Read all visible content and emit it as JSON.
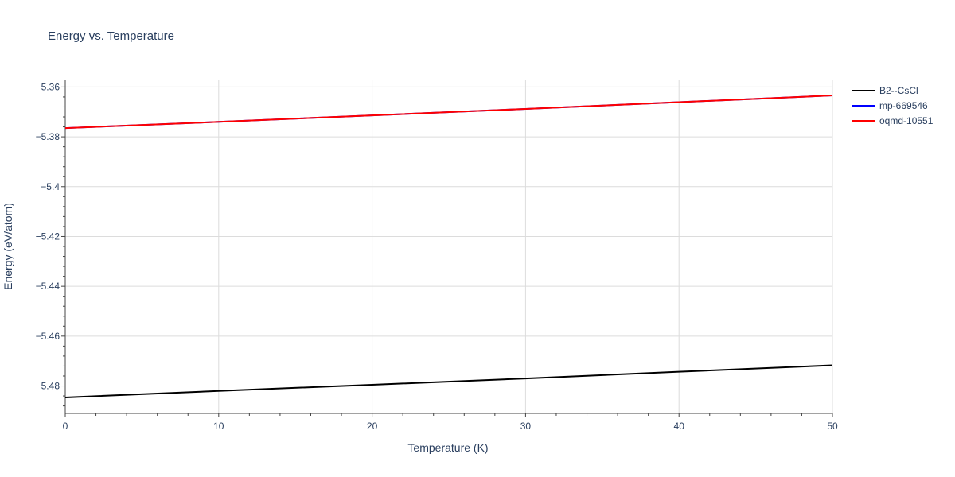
{
  "chart_data": {
    "type": "line",
    "title": "Energy vs. Temperature",
    "xlabel": "Temperature (K)",
    "ylabel": "Energy (eV/atom)",
    "xlim": [
      0,
      50
    ],
    "ylim": [
      -5.491,
      -5.357
    ],
    "x_ticks": [
      0,
      10,
      20,
      30,
      40,
      50
    ],
    "x_tick_labels": [
      "0",
      "10",
      "20",
      "30",
      "40",
      "50"
    ],
    "y_ticks": [
      -5.48,
      -5.46,
      -5.44,
      -5.42,
      -5.4,
      -5.38,
      -5.36
    ],
    "y_tick_labels": [
      "−5.48",
      "−5.46",
      "−5.44",
      "−5.42",
      "−5.4",
      "−5.38",
      "−5.36"
    ],
    "grid": true,
    "legend_position": "right",
    "series": [
      {
        "name": "B2--CsCl",
        "color": "#000000",
        "x": [
          0,
          10,
          20,
          30,
          40,
          50
        ],
        "y": [
          -5.4846,
          -5.482,
          -5.4795,
          -5.477,
          -5.4743,
          -5.4717
        ]
      },
      {
        "name": "mp-669546",
        "color": "#0000ff",
        "x": [
          0,
          10,
          20,
          30,
          40,
          50
        ],
        "y": [
          -5.3765,
          -5.374,
          -5.3714,
          -5.3688,
          -5.3661,
          -5.3634
        ]
      },
      {
        "name": "oqmd-10551",
        "color": "#ff0000",
        "x": [
          0,
          10,
          20,
          30,
          40,
          50
        ],
        "y": [
          -5.3765,
          -5.374,
          -5.3714,
          -5.3688,
          -5.3661,
          -5.3634
        ]
      }
    ]
  }
}
